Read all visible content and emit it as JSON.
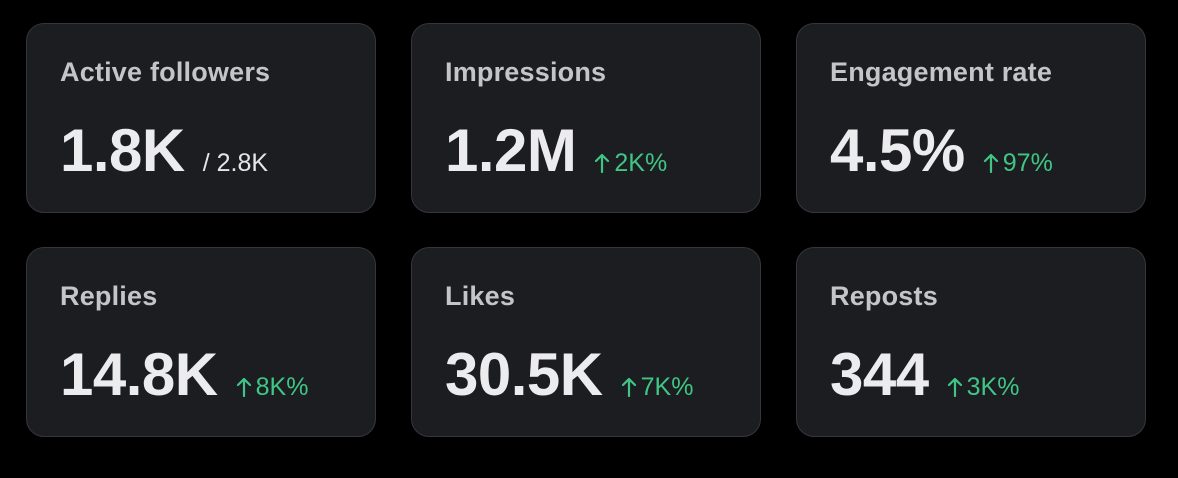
{
  "cards": [
    {
      "label": "Active followers",
      "value": "1.8K",
      "sub": "/ 2.8K"
    },
    {
      "label": "Impressions",
      "value": "1.2M",
      "delta": "2K%"
    },
    {
      "label": "Engagement rate",
      "value": "4.5%",
      "delta": "97%"
    },
    {
      "label": "Replies",
      "value": "14.8K",
      "delta": "8K%"
    },
    {
      "label": "Likes",
      "value": "30.5K",
      "delta": "7K%"
    },
    {
      "label": "Reposts",
      "value": "344",
      "delta": "3K%"
    }
  ]
}
